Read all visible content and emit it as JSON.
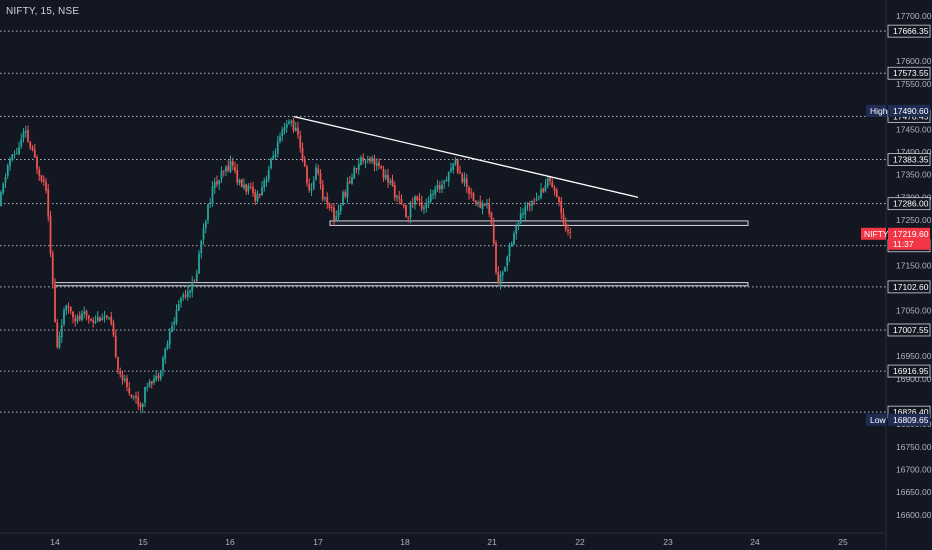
{
  "header": {
    "symbol_line": "NIFTY, 15, NSE"
  },
  "colors": {
    "background": "#131722",
    "bull": "#26a69a",
    "bear": "#ef5350",
    "level_line": "#d1d4dc",
    "price_badge": "#f23645",
    "high_low_badge": "#1e2b53"
  },
  "chart_data": {
    "type": "candlestick",
    "ylim": [
      16560,
      17735
    ],
    "price_ticks": [
      17700,
      17600,
      17550,
      17450,
      17400,
      17350,
      17300,
      17250,
      17150,
      17050,
      16950,
      16900,
      16800,
      16750,
      16700,
      16650,
      16600
    ],
    "x_ticks": [
      "14",
      "15",
      "16",
      "17",
      "18",
      "21",
      "22",
      "23",
      "24",
      "25"
    ],
    "horizontal_levels": [
      17666.35,
      17573.55,
      17478.45,
      17383.35,
      17286.0,
      17193.2,
      17102.6,
      17007.55,
      16916.95,
      16826.4
    ],
    "level_labels": [
      "17666.35",
      "17573.55",
      "17478.45",
      "17383.35",
      "17286.00",
      "17193.20",
      "17102.60",
      "17007.55",
      "16916.95",
      "16826.40"
    ],
    "high": {
      "label": "High",
      "value": "17490.60"
    },
    "low": {
      "label": "Low",
      "value": "16809.65"
    },
    "last_price": {
      "label": "NIFTY",
      "value": "17219.60",
      "countdown": "11:37"
    },
    "support_zones": [
      {
        "from_x": "17",
        "to_x": "23",
        "low": 17238,
        "high": 17248
      },
      {
        "from_x": "14",
        "to_x": "23",
        "low": 17105,
        "high": 17112
      }
    ],
    "trendline": {
      "from": {
        "x": "16",
        "y": 17478
      },
      "to": {
        "x": "22",
        "y": 17300
      }
    },
    "anchors": [
      [
        0,
        17280
      ],
      [
        10,
        17380
      ],
      [
        18,
        17400
      ],
      [
        26,
        17445
      ],
      [
        33,
        17400
      ],
      [
        40,
        17360
      ],
      [
        48,
        17320
      ],
      [
        54,
        17105
      ],
      [
        58,
        16960
      ],
      [
        64,
        17040
      ],
      [
        70,
        17060
      ],
      [
        78,
        17030
      ],
      [
        86,
        17040
      ],
      [
        95,
        17030
      ],
      [
        104,
        17040
      ],
      [
        112,
        17020
      ],
      [
        120,
        16920
      ],
      [
        128,
        16880
      ],
      [
        136,
        16860
      ],
      [
        142,
        16840
      ],
      [
        150,
        16900
      ],
      [
        158,
        16900
      ],
      [
        166,
        16960
      ],
      [
        174,
        17020
      ],
      [
        182,
        17080
      ],
      [
        190,
        17100
      ],
      [
        196,
        17110
      ],
      [
        204,
        17230
      ],
      [
        214,
        17320
      ],
      [
        224,
        17350
      ],
      [
        233,
        17380
      ],
      [
        240,
        17330
      ],
      [
        248,
        17320
      ],
      [
        258,
        17300
      ],
      [
        268,
        17350
      ],
      [
        276,
        17400
      ],
      [
        284,
        17440
      ],
      [
        292,
        17470
      ],
      [
        300,
        17430
      ],
      [
        306,
        17360
      ],
      [
        312,
        17300
      ],
      [
        318,
        17380
      ],
      [
        324,
        17300
      ],
      [
        330,
        17290
      ],
      [
        336,
        17250
      ],
      [
        344,
        17300
      ],
      [
        352,
        17340
      ],
      [
        360,
        17380
      ],
      [
        368,
        17390
      ],
      [
        376,
        17380
      ],
      [
        384,
        17350
      ],
      [
        392,
        17330
      ],
      [
        400,
        17290
      ],
      [
        408,
        17260
      ],
      [
        416,
        17300
      ],
      [
        424,
        17280
      ],
      [
        432,
        17300
      ],
      [
        440,
        17320
      ],
      [
        448,
        17350
      ],
      [
        456,
        17380
      ],
      [
        464,
        17340
      ],
      [
        472,
        17310
      ],
      [
        480,
        17280
      ],
      [
        488,
        17290
      ],
      [
        494,
        17230
      ],
      [
        498,
        17110
      ],
      [
        504,
        17130
      ],
      [
        510,
        17190
      ],
      [
        518,
        17240
      ],
      [
        526,
        17270
      ],
      [
        534,
        17300
      ],
      [
        542,
        17310
      ],
      [
        548,
        17340
      ],
      [
        554,
        17330
      ],
      [
        560,
        17290
      ],
      [
        566,
        17240
      ],
      [
        571,
        17220
      ]
    ]
  }
}
